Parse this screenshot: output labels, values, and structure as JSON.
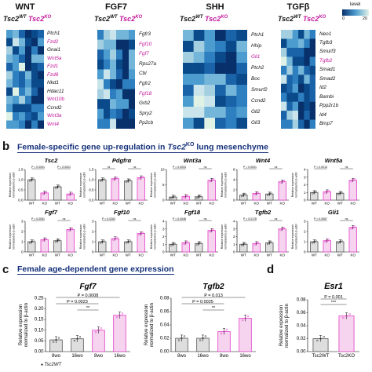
{
  "panel_a": {
    "heatmaps": [
      {
        "title": "WNT",
        "wt": "Tsc2",
        "wt_sup": "WT",
        "ko": "Tsc2",
        "ko_sup": "KO",
        "genes": [
          "Ptch1",
          "Fzd2",
          "Gnai1",
          "Wnt5a",
          "Fzd1",
          "Fzd8",
          "Nkd1",
          "Hdac11",
          "Wnt10b",
          "Ccnd2",
          "Wnt3a",
          "Wnt4"
        ],
        "magenta": [
          false,
          true,
          false,
          true,
          true,
          true,
          false,
          false,
          true,
          false,
          true,
          true
        ]
      },
      {
        "title": "FGF7",
        "wt": "Tsc2",
        "wt_sup": "WT",
        "ko": "Tsc2",
        "ko_sup": "KO",
        "genes": [
          "Fgfr3",
          "Fgf10",
          "Fgf7",
          "Rps27a",
          "Cbl",
          "Fgfr2",
          "Fgf18",
          "Grb2",
          "Spry2",
          "Pp2cb"
        ],
        "magenta": [
          false,
          true,
          true,
          false,
          false,
          false,
          true,
          false,
          false,
          false
        ]
      },
      {
        "title": "SHH",
        "wt": "Tsc2",
        "wt_sup": "WT",
        "ko": "Tsc2",
        "ko_sup": "KO",
        "genes": [
          "Ptch1",
          "Hhip",
          "Gli1",
          "Ptch2",
          "Boc",
          "Smurf2",
          "Ccnd2",
          "Gli2",
          "Gli3"
        ],
        "magenta": [
          false,
          false,
          true,
          false,
          false,
          false,
          false,
          false,
          false
        ]
      },
      {
        "title": "TGFβ",
        "wt": "Tsc2",
        "wt_sup": "WT",
        "ko": "Tsc2",
        "ko_sup": "KO",
        "genes": [
          "Neo1",
          "Tgfb3",
          "Smurf3",
          "Tgfb2",
          "Smad1",
          "Smad2",
          "Id2",
          "Bambi",
          "Ppp2r1b",
          "Id4",
          "Bmp7"
        ],
        "magenta": [
          false,
          false,
          false,
          true,
          false,
          false,
          false,
          false,
          false,
          false,
          false
        ]
      }
    ],
    "legend": {
      "label": "level",
      "min": "0",
      "max": "20"
    }
  },
  "panel_b": {
    "heading_prefix": "Female-specific gene up-regulation in ",
    "heading_gene": "Tsc2",
    "heading_sup": "KO",
    "heading_suffix": " lung mesenchyme",
    "ylabel_line1": "Relative expression",
    "ylabel_line2": "normalized to β-actin",
    "xcats": [
      "WT Male",
      "Tsc2KO Male",
      "WT Female",
      "Tsc2KO Female"
    ]
  },
  "panel_c": {
    "heading": "Female age-dependent gene expression",
    "ylabel_line1": "Relative expression",
    "ylabel_line2": "normalized to β-actin",
    "legend_wt": "Tsc2WT"
  },
  "panel_d": {
    "ylabel_line1": "Relative expression",
    "ylabel_line2": "normalized to β-actin"
  },
  "letters": {
    "b": "b",
    "c": "c",
    "d": "d"
  },
  "colors": {
    "magenta": "#e23fc8",
    "grey": "#bdbdbd",
    "navy": "#14307a"
  },
  "chart_data": [
    {
      "type": "bar",
      "title": "Tsc2",
      "categories": [
        "WT Male",
        "Tsc2KO Male",
        "WT Female",
        "Tsc2KO Female"
      ],
      "values": [
        1.0,
        0.35,
        0.65,
        0.3
      ],
      "ylim": [
        0,
        1.5
      ],
      "yticks": [
        "0.0",
        "0.5",
        "1.0",
        "1.5"
      ],
      "sig": [
        "P < 0.0001",
        "P < 0.0001"
      ]
    },
    {
      "type": "bar",
      "title": "Pdgfrα",
      "categories": [
        "WT Male",
        "Tsc2KO Male",
        "WT Female",
        "Tsc2KO Female"
      ],
      "values": [
        1.0,
        1.05,
        0.95,
        1.1
      ],
      "ylim": [
        0,
        1.5
      ],
      "yticks": [
        "0.0",
        "0.5",
        "1.0",
        "1.5"
      ],
      "sig": [
        "ns",
        "ns"
      ]
    },
    {
      "type": "bar",
      "title": "Wnt3a",
      "categories": [
        "WT Male",
        "Tsc2KO Male",
        "WT Female",
        "Tsc2KO Female"
      ],
      "values": [
        1.0,
        1.2,
        1.1,
        6.5
      ],
      "ylim": [
        0,
        10
      ],
      "yticks": [
        "0",
        "5",
        "10"
      ],
      "sig": [
        "P = 0.0004",
        "ns"
      ]
    },
    {
      "type": "bar",
      "title": "Wnt4",
      "categories": [
        "WT Male",
        "Tsc2KO Male",
        "WT Female",
        "Tsc2KO Female"
      ],
      "values": [
        1.0,
        1.3,
        1.2,
        3.6
      ],
      "ylim": [
        0,
        6
      ],
      "yticks": [
        "0",
        "2",
        "4",
        "6"
      ],
      "sig": [
        "P = 0.0001",
        "ns"
      ]
    },
    {
      "type": "bar",
      "title": "Wnt5a",
      "categories": [
        "WT Male",
        "Tsc2KO Male",
        "WT Female",
        "Tsc2KO Female"
      ],
      "values": [
        1.0,
        1.1,
        0.9,
        2.6
      ],
      "ylim": [
        0,
        4
      ],
      "yticks": [
        "0",
        "1",
        "2",
        "3",
        "4"
      ],
      "sig": [
        "P = 0.0013",
        "ns"
      ]
    },
    {
      "type": "bar",
      "title": "Fgf7",
      "categories": [
        "WT Male",
        "Tsc2KO Male",
        "WT Female",
        "Tsc2KO Female"
      ],
      "values": [
        1.0,
        1.2,
        1.1,
        2.2
      ],
      "ylim": [
        0,
        3
      ],
      "yticks": [
        "0",
        "1",
        "2",
        "3"
      ],
      "sig": [
        "P = 0.0051",
        "ns"
      ]
    },
    {
      "type": "bar",
      "title": "Fgf10",
      "categories": [
        "WT Male",
        "Tsc2KO Male",
        "WT Female",
        "Tsc2KO Female"
      ],
      "values": [
        1.0,
        1.3,
        1.0,
        1.8
      ],
      "ylim": [
        0,
        3
      ],
      "yticks": [
        "0",
        "1",
        "2",
        "3"
      ],
      "sig": [
        "P = 0.0262",
        "ns"
      ]
    },
    {
      "type": "bar",
      "title": "Fgf18",
      "categories": [
        "WT Male",
        "Tsc2KO Male",
        "WT Female",
        "Tsc2KO Female"
      ],
      "values": [
        1.0,
        1.2,
        1.1,
        2.8
      ],
      "ylim": [
        0,
        4
      ],
      "yticks": [
        "0",
        "1",
        "2",
        "3",
        "4"
      ],
      "sig": [
        "P = 0.0048",
        "ns"
      ]
    },
    {
      "type": "bar",
      "title": "Tgfb2",
      "categories": [
        "WT Male",
        "Tsc2KO Male",
        "WT Female",
        "Tsc2KO Female"
      ],
      "values": [
        1.0,
        1.1,
        1.2,
        3.0
      ],
      "ylim": [
        0,
        4
      ],
      "yticks": [
        "0",
        "1",
        "2",
        "3",
        "4"
      ],
      "sig": [
        "P = 0.0178",
        "ns"
      ]
    },
    {
      "type": "bar",
      "title": "Gli1",
      "categories": [
        "WT Male",
        "Tsc2KO Male",
        "WT Female",
        "Tsc2KO Female"
      ],
      "values": [
        1.0,
        1.1,
        1.0,
        2.4
      ],
      "ylim": [
        0,
        3
      ],
      "yticks": [
        "0",
        "1",
        "2",
        "3"
      ],
      "sig": [
        "P = 0.0067",
        "ns"
      ]
    },
    {
      "type": "bar",
      "title": "Fgf7",
      "categories": [
        "8wo",
        "16wo",
        "8wo",
        "16wo"
      ],
      "values": [
        0.055,
        0.06,
        0.1,
        0.17
      ],
      "ylim": [
        0,
        0.25
      ],
      "yticks": [
        "0.00",
        "0.05",
        "0.10",
        "0.15",
        "0.20",
        "0.25"
      ],
      "sig": [
        "P = 0.0008",
        "P = 0.0023",
        "**"
      ]
    },
    {
      "type": "bar",
      "title": "Tgfb2",
      "categories": [
        "8wo",
        "16wo",
        "8wo",
        "16wo"
      ],
      "values": [
        0.02,
        0.02,
        0.03,
        0.05
      ],
      "ylim": [
        0,
        0.08
      ],
      "yticks": [
        "0.00",
        "0.02",
        "0.04",
        "0.06",
        "0.08"
      ],
      "sig": [
        "P = 0.013",
        "P = 0.0025",
        "**"
      ]
    },
    {
      "type": "bar",
      "title": "Esr1",
      "categories": [
        "Tsc2WT",
        "Tsc2KO"
      ],
      "values": [
        0.02,
        0.055
      ],
      "ylim": [
        0,
        0.08
      ],
      "yticks": [
        "0.00",
        "0.02",
        "0.04",
        "0.06",
        "0.08"
      ],
      "sig": [
        "P = 0.001",
        "***"
      ]
    }
  ]
}
